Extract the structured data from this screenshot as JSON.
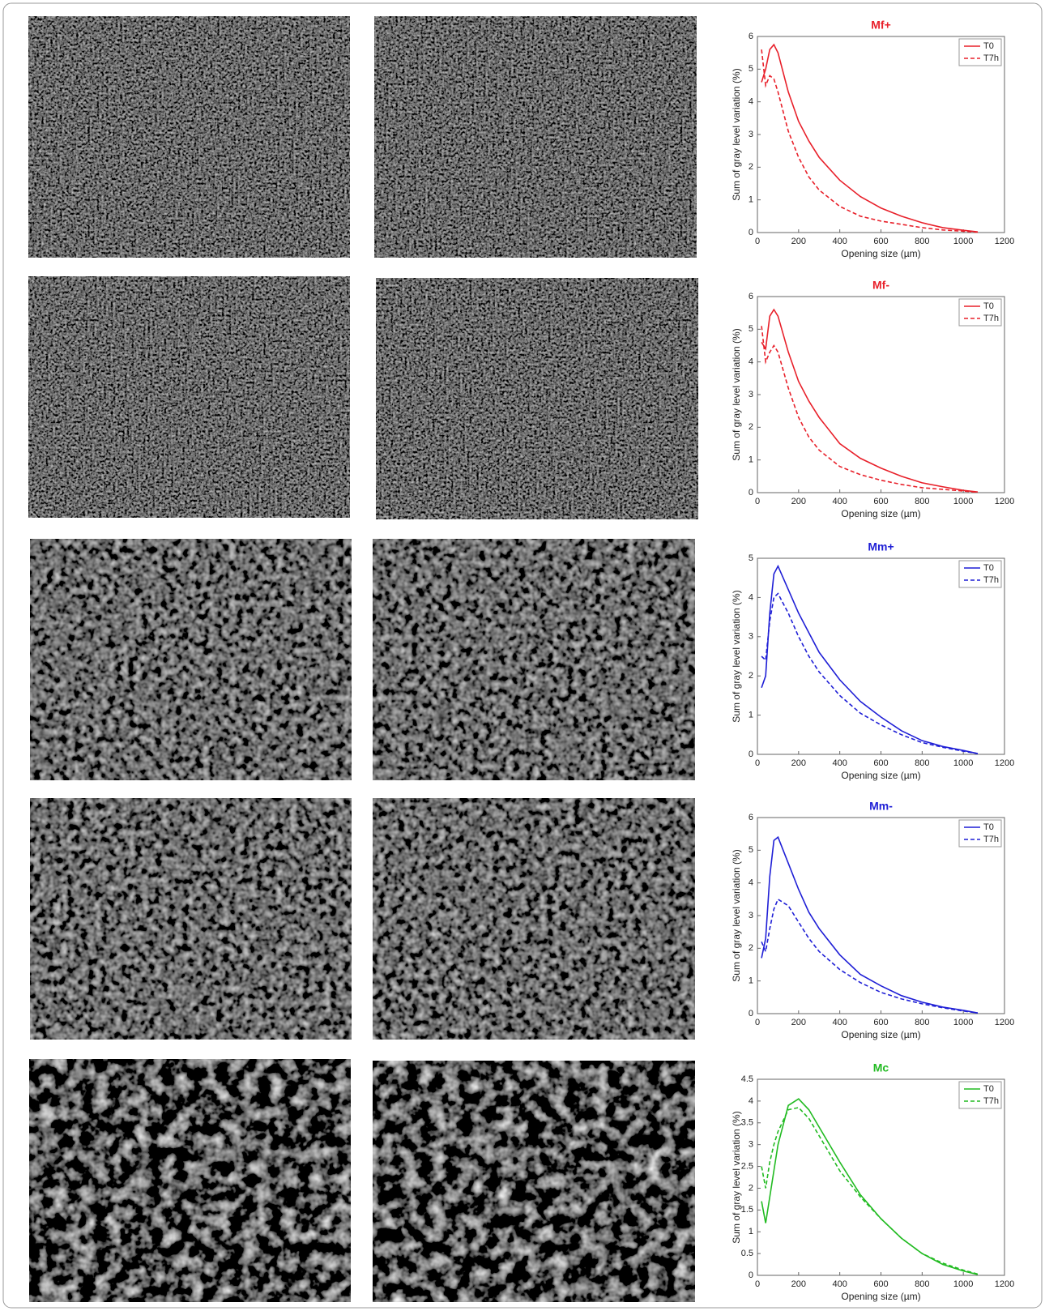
{
  "chart_data": [
    {
      "type": "line",
      "title": "Mf+",
      "xlabel": "Opening size (µm)",
      "ylabel": "Sum of gray level variation (%)",
      "x": [
        20,
        40,
        60,
        80,
        100,
        150,
        200,
        250,
        300,
        400,
        500,
        600,
        700,
        800,
        900,
        1000,
        1070
      ],
      "xlim": [
        0,
        1200
      ],
      "xticks": [
        0,
        200,
        400,
        600,
        800,
        1000,
        1200
      ],
      "ylim": [
        0,
        6
      ],
      "yticks": [
        0,
        1,
        2,
        3,
        4,
        5,
        6
      ],
      "legend": "upper right",
      "series": [
        {
          "name": "T0",
          "color": "#e8202a",
          "line_style": "solid",
          "values": [
            4.6,
            5.0,
            5.6,
            5.75,
            5.5,
            4.3,
            3.4,
            2.8,
            2.3,
            1.6,
            1.1,
            0.75,
            0.5,
            0.3,
            0.15,
            0.07,
            0.02
          ]
        },
        {
          "name": "T7h",
          "color": "#e8202a",
          "line_style": "dashed",
          "values": [
            5.6,
            4.5,
            4.8,
            4.7,
            4.3,
            3.1,
            2.3,
            1.7,
            1.3,
            0.8,
            0.5,
            0.35,
            0.25,
            0.15,
            0.08,
            0.04,
            0.01
          ]
        }
      ]
    },
    {
      "type": "line",
      "title": "Mf-",
      "xlabel": "Opening size (µm)",
      "ylabel": "Sum of gray level variation (%)",
      "x": [
        20,
        40,
        60,
        80,
        100,
        150,
        200,
        250,
        300,
        400,
        500,
        600,
        700,
        800,
        900,
        1000,
        1070
      ],
      "xlim": [
        0,
        1200
      ],
      "xticks": [
        0,
        200,
        400,
        600,
        800,
        1000,
        1200
      ],
      "ylim": [
        0,
        6
      ],
      "yticks": [
        0,
        1,
        2,
        3,
        4,
        5,
        6
      ],
      "legend": "upper right",
      "series": [
        {
          "name": "T0",
          "color": "#e8202a",
          "line_style": "solid",
          "values": [
            4.6,
            4.4,
            5.4,
            5.6,
            5.4,
            4.3,
            3.4,
            2.8,
            2.3,
            1.5,
            1.05,
            0.75,
            0.5,
            0.3,
            0.18,
            0.07,
            0.02
          ]
        },
        {
          "name": "T7h",
          "color": "#e8202a",
          "line_style": "dashed",
          "values": [
            5.1,
            4.0,
            4.3,
            4.5,
            4.3,
            3.2,
            2.3,
            1.7,
            1.3,
            0.8,
            0.55,
            0.38,
            0.25,
            0.15,
            0.1,
            0.05,
            0.01
          ]
        }
      ]
    },
    {
      "type": "line",
      "title": "Mm+",
      "xlabel": "Opening size (µm)",
      "ylabel": "Sum of gray level variation (%)",
      "x": [
        20,
        40,
        60,
        80,
        100,
        150,
        200,
        250,
        300,
        400,
        500,
        600,
        700,
        800,
        900,
        1000,
        1070
      ],
      "xlim": [
        0,
        1200
      ],
      "xticks": [
        0,
        200,
        400,
        600,
        800,
        1000,
        1200
      ],
      "ylim": [
        0,
        5
      ],
      "yticks": [
        0,
        1,
        2,
        3,
        4,
        5
      ],
      "legend": "upper right",
      "series": [
        {
          "name": "T0",
          "color": "#1f1fd6",
          "line_style": "solid",
          "values": [
            1.7,
            2.0,
            3.6,
            4.6,
            4.8,
            4.2,
            3.6,
            3.1,
            2.6,
            1.9,
            1.35,
            0.95,
            0.6,
            0.35,
            0.2,
            0.1,
            0.02
          ]
        },
        {
          "name": "T7h",
          "color": "#1f1fd6",
          "line_style": "dashed",
          "values": [
            2.5,
            2.4,
            3.4,
            4.0,
            4.1,
            3.6,
            3.0,
            2.5,
            2.1,
            1.5,
            1.05,
            0.75,
            0.5,
            0.3,
            0.18,
            0.08,
            0.02
          ]
        }
      ]
    },
    {
      "type": "line",
      "title": "Mm-",
      "xlabel": "Opening size (µm)",
      "ylabel": "Sum of gray level variation (%)",
      "x": [
        20,
        40,
        60,
        80,
        100,
        150,
        200,
        250,
        300,
        400,
        500,
        600,
        700,
        800,
        900,
        1000,
        1070
      ],
      "xlim": [
        0,
        1200
      ],
      "xticks": [
        0,
        200,
        400,
        600,
        800,
        1000,
        1200
      ],
      "ylim": [
        0,
        6
      ],
      "yticks": [
        0,
        1,
        2,
        3,
        4,
        5,
        6
      ],
      "legend": "upper right",
      "series": [
        {
          "name": "T0",
          "color": "#1f1fd6",
          "line_style": "solid",
          "values": [
            1.7,
            2.3,
            4.2,
            5.3,
            5.4,
            4.6,
            3.8,
            3.1,
            2.6,
            1.8,
            1.2,
            0.85,
            0.55,
            0.35,
            0.2,
            0.1,
            0.02
          ]
        },
        {
          "name": "T7h",
          "color": "#1f1fd6",
          "line_style": "dashed",
          "values": [
            2.2,
            1.9,
            2.6,
            3.2,
            3.5,
            3.3,
            2.8,
            2.3,
            1.9,
            1.35,
            0.95,
            0.65,
            0.45,
            0.3,
            0.18,
            0.08,
            0.02
          ]
        }
      ]
    },
    {
      "type": "line",
      "title": "Mc",
      "xlabel": "Opening size (µm)",
      "ylabel": "Sum of gray level variation (%)",
      "x": [
        20,
        40,
        60,
        80,
        100,
        150,
        200,
        250,
        300,
        400,
        500,
        600,
        700,
        800,
        900,
        1000,
        1070
      ],
      "xlim": [
        0,
        1200
      ],
      "xticks": [
        0,
        200,
        400,
        600,
        800,
        1000,
        1200
      ],
      "ylim": [
        0,
        4.5
      ],
      "yticks": [
        0,
        0.5,
        1,
        1.5,
        2,
        2.5,
        3,
        3.5,
        4,
        4.5
      ],
      "legend": "upper right",
      "series": [
        {
          "name": "T0",
          "color": "#22bb22",
          "line_style": "solid",
          "values": [
            1.7,
            1.2,
            1.8,
            2.4,
            3.0,
            3.9,
            4.05,
            3.8,
            3.4,
            2.6,
            1.85,
            1.3,
            0.85,
            0.5,
            0.25,
            0.1,
            0.02
          ]
        },
        {
          "name": "T7h",
          "color": "#22bb22",
          "line_style": "dashed",
          "values": [
            2.5,
            2.0,
            2.6,
            3.0,
            3.3,
            3.8,
            3.85,
            3.6,
            3.2,
            2.4,
            1.8,
            1.3,
            0.85,
            0.5,
            0.28,
            0.12,
            0.03
          ]
        }
      ]
    }
  ]
}
